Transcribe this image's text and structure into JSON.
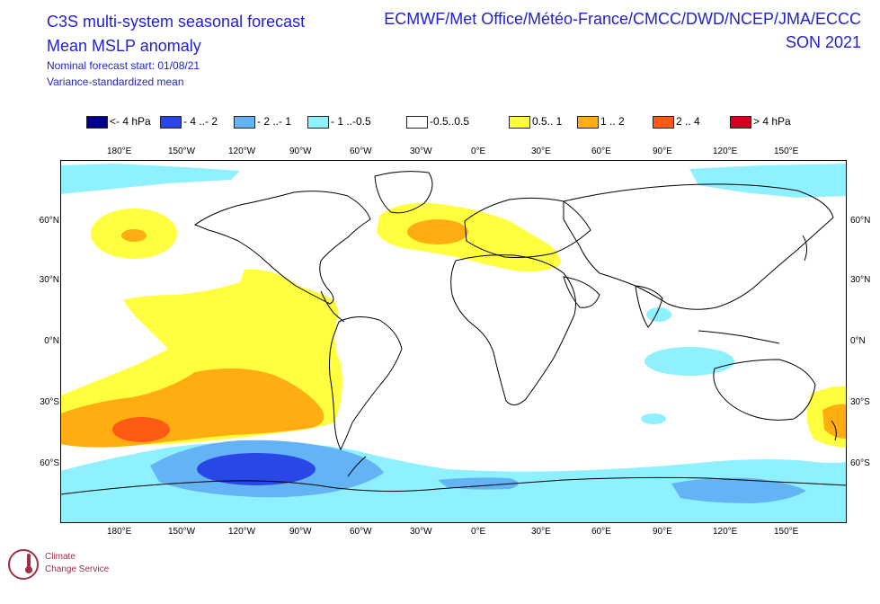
{
  "header": {
    "title_line1": "C3S multi-system seasonal forecast",
    "title_line2": "Mean MSLP anomaly",
    "forecast_start": "Nominal forecast start: 01/08/21",
    "mean_type": "Variance-standardized mean",
    "centres": "ECMWF/Met Office/Météo-France/CMCC/DWD/NCEP/JMA/ECCC",
    "season": "SON 2021"
  },
  "legend": [
    {
      "label": "<- 4 hPa",
      "color": "#00008c"
    },
    {
      "label": "- 4 ..- 2",
      "color": "#2847e6"
    },
    {
      "label": "- 2 ..- 1",
      "color": "#64b4f5"
    },
    {
      "label": "- 1 ..-0.5",
      "color": "#8ff0ff"
    },
    {
      "label": "-0.5..0.5",
      "color": "#ffffff"
    },
    {
      "label": "0.5.. 1",
      "color": "#ffff40"
    },
    {
      "label": "1 .. 2",
      "color": "#ffad10"
    },
    {
      "label": "2 .. 4",
      "color": "#ff5a14"
    },
    {
      "label": "> 4 hPa",
      "color": "#d2001e"
    }
  ],
  "lon_labels": [
    "180°E",
    "150°W",
    "120°W",
    "90°W",
    "60°W",
    "30°W",
    "0°E",
    "30°E",
    "60°E",
    "90°E",
    "120°E",
    "150°E"
  ],
  "lat_labels": [
    "60°N",
    "30°N",
    "0°N",
    "30°S",
    "60°S"
  ],
  "logo": {
    "line1": "Climate",
    "line2": "Change Service"
  },
  "colors": {
    "title": "#1f1fd6",
    "land_outline": "#000000",
    "map_border": "#000000"
  }
}
